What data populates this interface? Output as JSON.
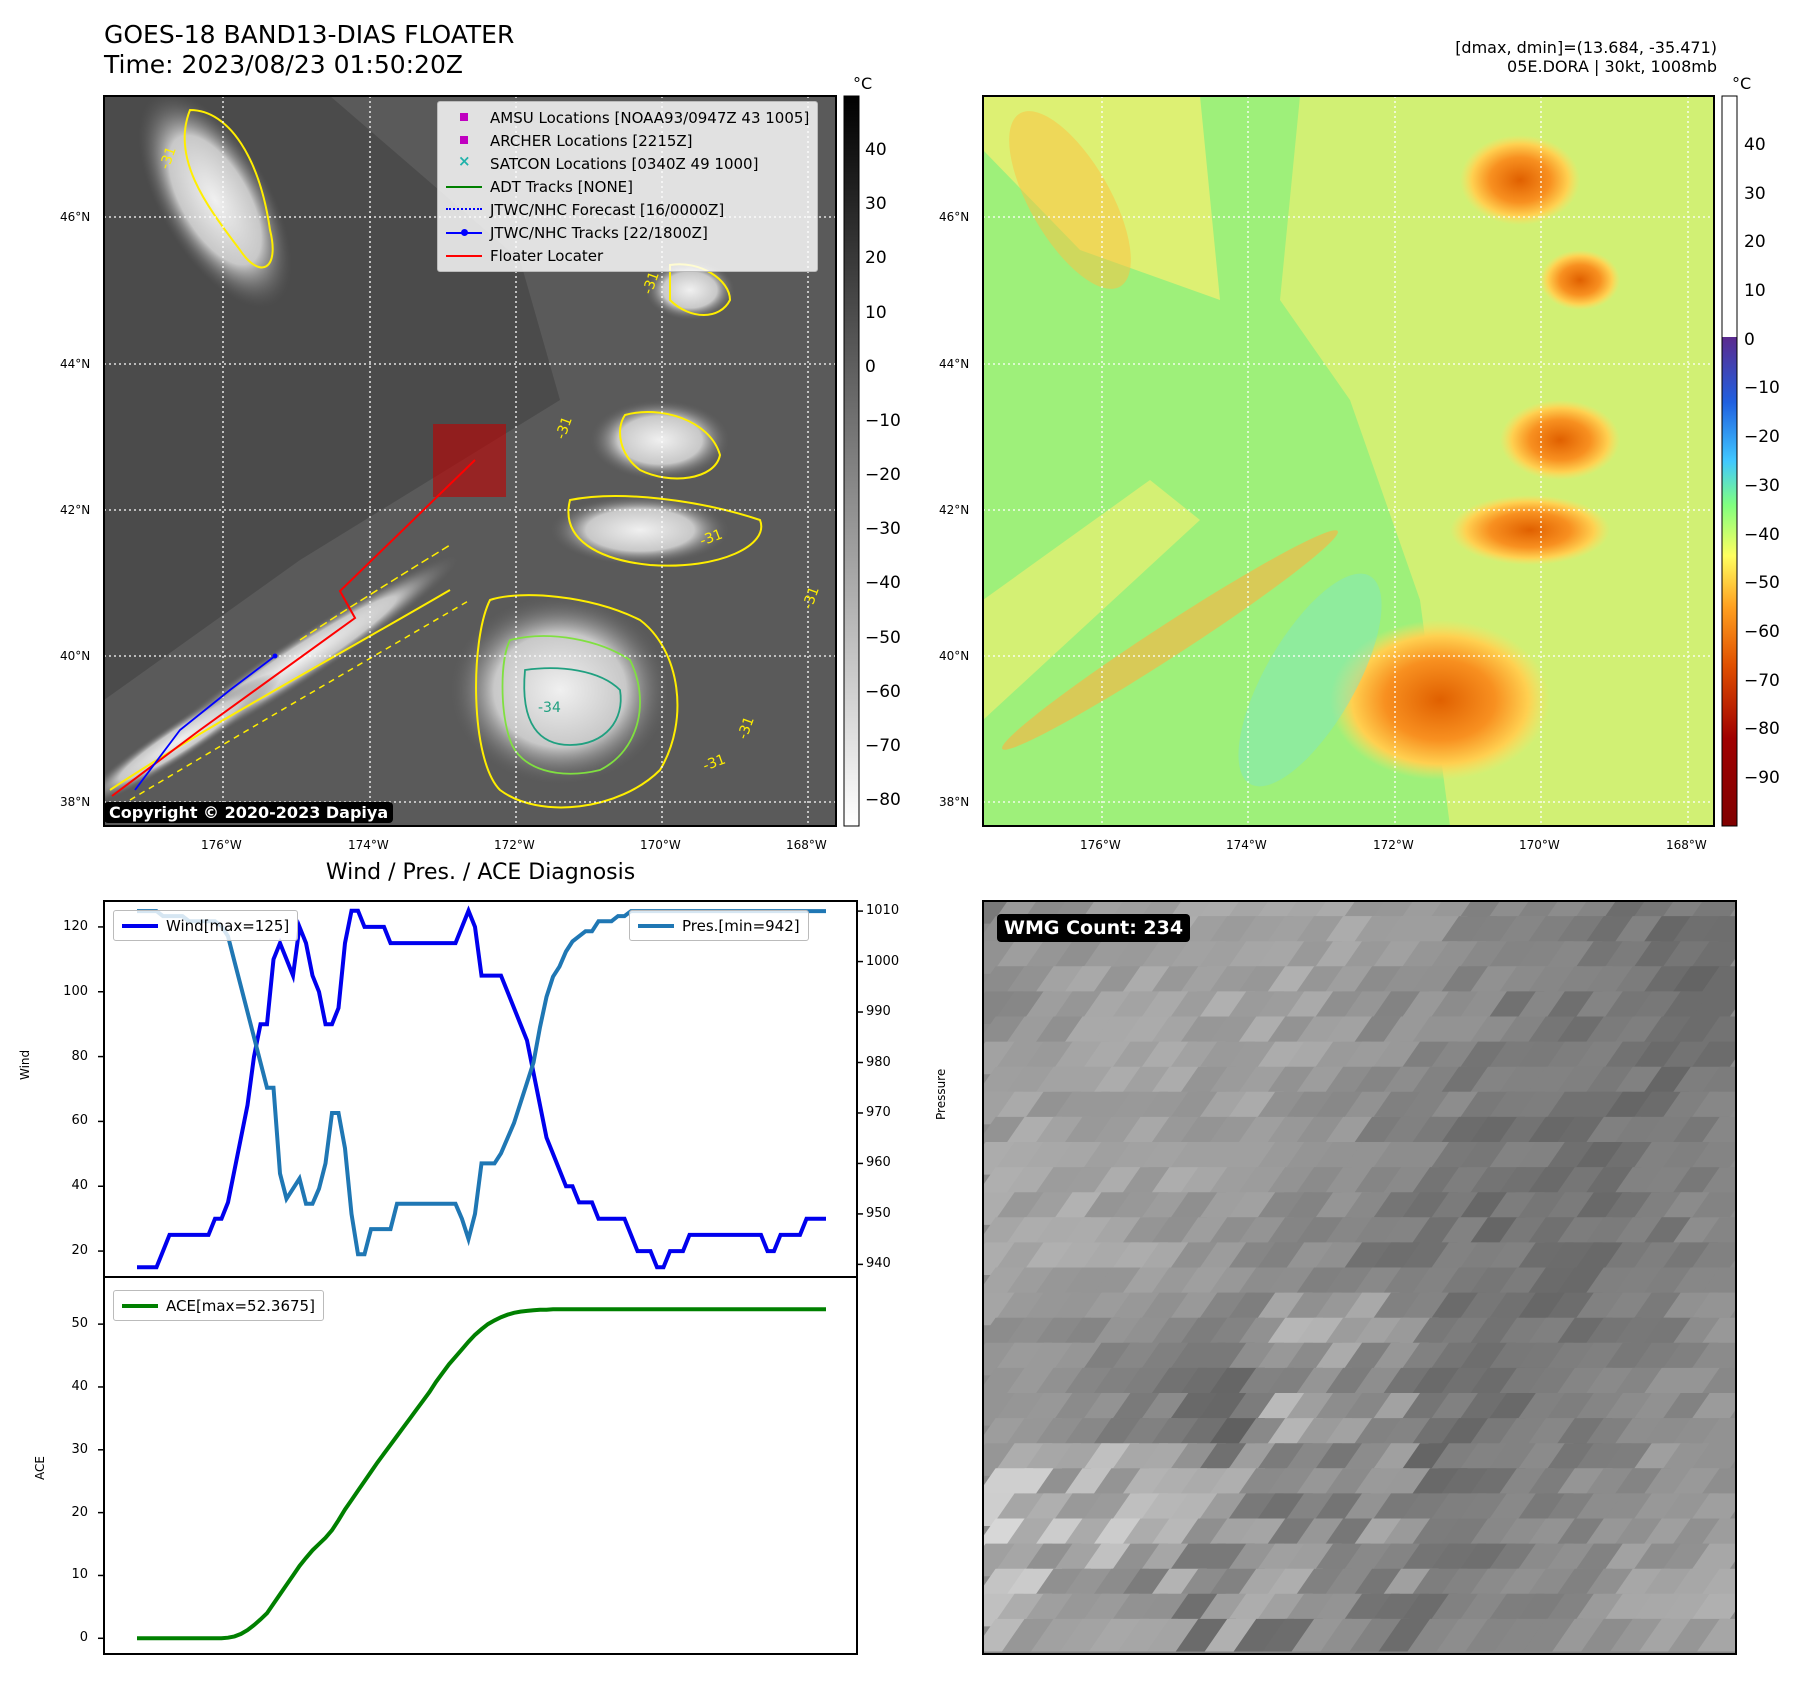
{
  "header": {
    "title_line1": "GOES-18 BAND13-DIAS FLOATER",
    "title_line2": "Time: 2023/08/23 01:50:20Z",
    "info_line1": "[dmax, dmin]=(13.684, -35.471)",
    "info_line2": "05E.DORA | 30kt, 1008mb"
  },
  "maps": {
    "lat_labels": [
      "46°N",
      "44°N",
      "42°N",
      "40°N",
      "38°N"
    ],
    "lon_labels": [
      "176°W",
      "174°W",
      "172°W",
      "170°W",
      "168°W"
    ],
    "copyright": "Copyright © 2020-2023 Dapiya",
    "contour_labels": [
      "-31",
      "-31",
      "-31",
      "-31",
      "-31",
      "-34",
      "-31",
      "-31"
    ]
  },
  "ir_colorbar": {
    "unit": "°C",
    "ticks": [
      "40",
      "30",
      "20",
      "10",
      "0",
      "−10",
      "−20",
      "−30",
      "−40",
      "−50",
      "−60",
      "−70",
      "−80"
    ]
  },
  "enh_colorbar": {
    "unit": "°C",
    "ticks": [
      "40",
      "30",
      "20",
      "10",
      "0",
      "−10",
      "−20",
      "−30",
      "−40",
      "−50",
      "−60",
      "−70",
      "−80",
      "−90"
    ]
  },
  "map_legend": [
    {
      "label": "AMSU Locations [NOAA93/0947Z 43 1005]",
      "symbol": "square",
      "color": "#c000c0"
    },
    {
      "label": "ARCHER Locations [2215Z]",
      "symbol": "square",
      "color": "#c000c0"
    },
    {
      "label": "SATCON Locations [0340Z 49 1000]",
      "symbol": "x",
      "color": "#20b2aa"
    },
    {
      "label": "ADT Tracks [NONE]",
      "symbol": "line",
      "color": "#008000"
    },
    {
      "label": "JTWC/NHC Forecast [16/0000Z]",
      "symbol": "dotted",
      "color": "#0000ff"
    },
    {
      "label": "JTWC/NHC Tracks [22/1800Z]",
      "symbol": "line-dot",
      "color": "#0000ff"
    },
    {
      "label": "Floater Locater",
      "symbol": "line",
      "color": "#ff0000"
    }
  ],
  "wmg": {
    "label": "WMG Count: 234"
  },
  "chart_data": [
    {
      "type": "line",
      "title": "Wind / Pres. / ACE Diagnosis",
      "ylabel": "Wind",
      "y2label": "Pressure",
      "ylim": [
        12,
        128
      ],
      "y2lim": [
        937.5,
        1012
      ],
      "yticks": [
        20,
        40,
        60,
        80,
        100,
        120
      ],
      "y2ticks": [
        940,
        950,
        960,
        970,
        980,
        990,
        1000,
        1010
      ],
      "series": [
        {
          "name": "Wind[max=125]",
          "axis": "left",
          "color": "#0000ee",
          "values": [
            15,
            15,
            15,
            15,
            20,
            25,
            25,
            25,
            25,
            25,
            25,
            25,
            30,
            30,
            35,
            45,
            55,
            65,
            80,
            90,
            90,
            110,
            115,
            110,
            105,
            120,
            115,
            105,
            100,
            90,
            90,
            95,
            115,
            125,
            125,
            120,
            120,
            120,
            120,
            115,
            115,
            115,
            115,
            115,
            115,
            115,
            115,
            115,
            115,
            115,
            120,
            125,
            120,
            105,
            105,
            105,
            105,
            100,
            95,
            90,
            85,
            75,
            65,
            55,
            50,
            45,
            40,
            40,
            35,
            35,
            35,
            30,
            30,
            30,
            30,
            30,
            25,
            20,
            20,
            20,
            15,
            15,
            20,
            20,
            20,
            25,
            25,
            25,
            25,
            25,
            25,
            25,
            25,
            25,
            25,
            25,
            25,
            20,
            20,
            25,
            25,
            25,
            25,
            30,
            30,
            30,
            30
          ]
        },
        {
          "name": "Pres.[min=942]",
          "axis": "right",
          "color": "#1f77b4",
          "values": [
            1010,
            1010,
            1010,
            1010,
            1009,
            1009,
            1009,
            1009,
            1008,
            1008,
            1008,
            1008,
            1008,
            1007,
            1005,
            1000,
            995,
            990,
            985,
            980,
            975,
            975,
            958,
            953,
            955,
            957,
            952,
            952,
            955,
            960,
            970,
            970,
            963,
            950,
            942,
            942,
            947,
            947,
            947,
            947,
            952,
            952,
            952,
            952,
            952,
            952,
            952,
            952,
            952,
            952,
            949,
            945,
            950,
            960,
            960,
            960,
            962,
            965,
            968,
            972,
            976,
            980,
            987,
            993,
            997,
            999,
            1002,
            1004,
            1005,
            1006,
            1006,
            1008,
            1008,
            1008,
            1009,
            1009,
            1010,
            1010,
            1010,
            1010,
            1010,
            1010,
            1010,
            1010,
            1010,
            1010,
            1010,
            1010,
            1010,
            1010,
            1010,
            1010,
            1010,
            1010,
            1010,
            1010,
            1010,
            1010,
            1010,
            1010,
            1010,
            1010,
            1010,
            1010,
            1010,
            1010,
            1010
          ]
        }
      ]
    },
    {
      "type": "line",
      "ylabel": "ACE",
      "ylim": [
        -2.5,
        57.5
      ],
      "yticks": [
        0,
        10,
        20,
        30,
        40,
        50
      ],
      "series": [
        {
          "name": "ACE[max=52.3675]",
          "color": "#008000",
          "values": [
            0,
            0,
            0,
            0,
            0,
            0,
            0,
            0,
            0,
            0,
            0,
            0,
            0,
            0,
            0.1,
            0.3,
            0.7,
            1.3,
            2.1,
            3.0,
            4.0,
            5.5,
            7.0,
            8.5,
            10.0,
            11.5,
            12.8,
            14.0,
            15.0,
            16.0,
            17.2,
            18.8,
            20.5,
            22.0,
            23.5,
            25.0,
            26.5,
            28.0,
            29.4,
            30.8,
            32.2,
            33.6,
            35.0,
            36.4,
            37.8,
            39.2,
            40.8,
            42.2,
            43.6,
            44.8,
            46.0,
            47.2,
            48.3,
            49.2,
            50.0,
            50.6,
            51.1,
            51.5,
            51.8,
            52.0,
            52.1,
            52.2,
            52.3,
            52.3,
            52.3675,
            52.3675,
            52.3675,
            52.3675,
            52.3675,
            52.3675,
            52.3675,
            52.3675,
            52.3675,
            52.3675,
            52.3675,
            52.3675,
            52.3675,
            52.3675,
            52.3675,
            52.3675,
            52.3675,
            52.3675,
            52.3675,
            52.3675,
            52.3675,
            52.3675,
            52.3675,
            52.3675,
            52.3675,
            52.3675,
            52.3675,
            52.3675,
            52.3675,
            52.3675,
            52.3675,
            52.3675,
            52.3675,
            52.3675,
            52.3675,
            52.3675,
            52.3675,
            52.3675,
            52.3675,
            52.3675,
            52.3675,
            52.3675,
            52.3675
          ]
        }
      ]
    }
  ]
}
